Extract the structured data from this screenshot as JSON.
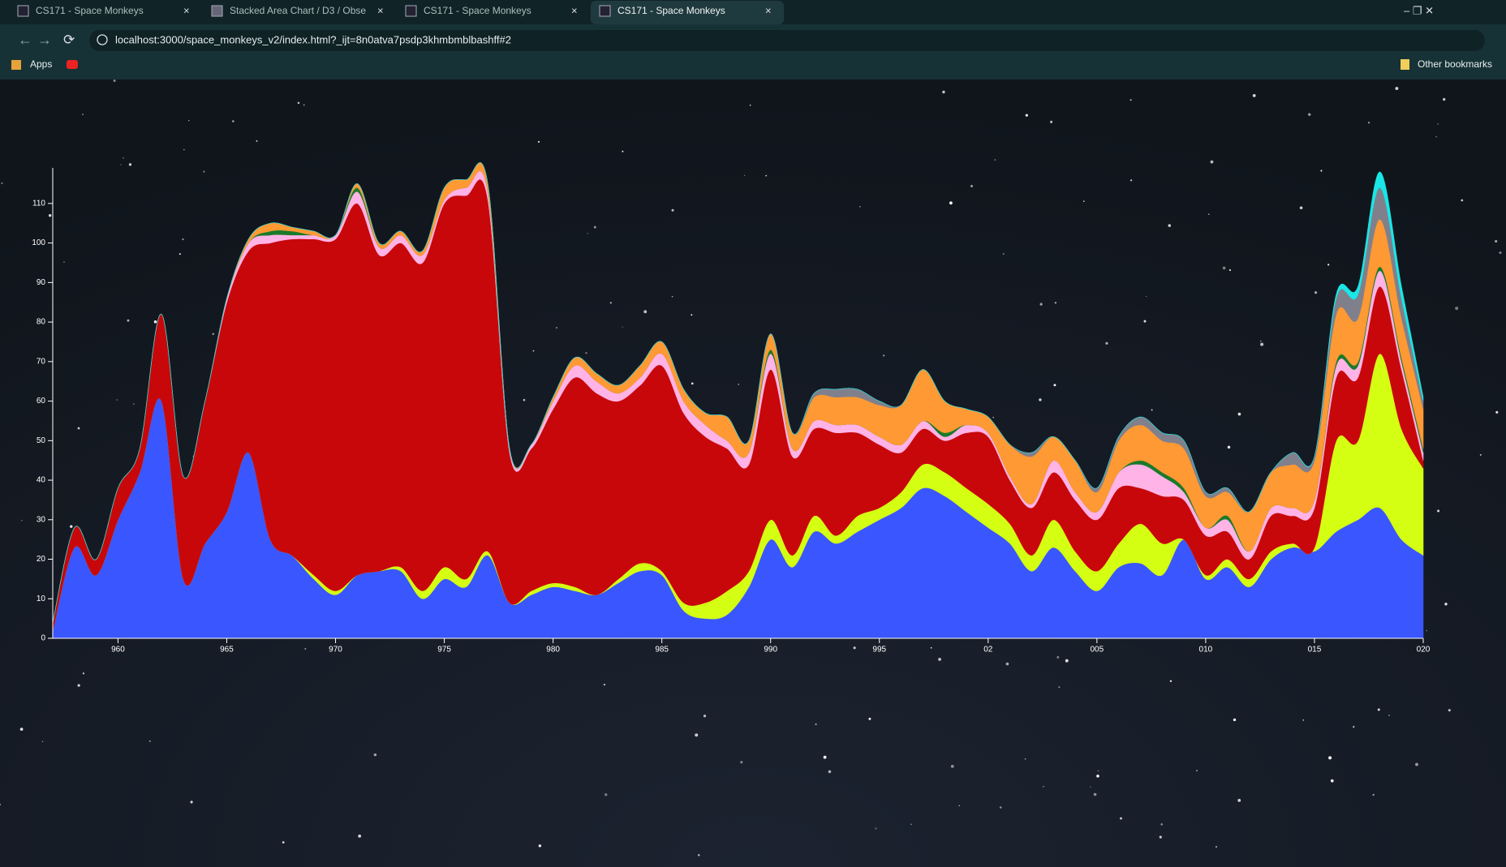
{
  "browser": {
    "tabs": [
      "CS171 - Space Monkeys",
      "Stacked Area Chart / D3 / Obse",
      "CS171 - Space Monkeys",
      "CS171 - Space Monkeys"
    ],
    "url": "localhost:3000/space_monkeys_v2/index.html?_ijt=8n0atva7psdp3khmbmblbashff#2",
    "bookmarks": [
      "Apps",
      "Other bookmarks"
    ]
  },
  "chart_data": {
    "type": "area",
    "stacked": true,
    "x": [
      1957,
      1958,
      1959,
      1960,
      1961,
      1962,
      1963,
      1964,
      1965,
      1966,
      1967,
      1968,
      1969,
      1970,
      1971,
      1972,
      1973,
      1974,
      1975,
      1976,
      1977,
      1978,
      1979,
      1980,
      1981,
      1982,
      1983,
      1984,
      1985,
      1986,
      1987,
      1988,
      1989,
      1990,
      1991,
      1992,
      1993,
      1994,
      1995,
      1996,
      1997,
      1998,
      1999,
      2000,
      2001,
      2002,
      2003,
      2004,
      2005,
      2006,
      2007,
      2008,
      2009,
      2010,
      2011,
      2012,
      2013,
      2014,
      2015,
      2016,
      2017,
      2018,
      2019,
      2020
    ],
    "series": [
      {
        "color": "#3a56ff",
        "values": [
          2,
          23,
          16,
          30,
          42,
          60,
          15,
          24,
          32,
          47,
          25,
          21,
          15,
          11,
          16,
          17,
          17,
          10,
          15,
          13,
          21,
          9,
          11,
          13,
          12,
          11,
          14,
          17,
          16,
          7,
          5,
          6,
          13,
          25,
          18,
          27,
          24,
          27,
          30,
          33,
          38,
          36,
          32,
          28,
          24,
          17,
          23,
          17,
          12,
          18,
          19,
          16,
          25,
          15,
          18,
          13,
          20,
          23,
          22,
          27,
          30,
          33,
          25,
          21
        ]
      },
      {
        "color": "#d4ff12",
        "values": [
          0,
          0,
          0,
          0,
          0,
          0,
          0,
          0,
          0,
          0,
          0,
          0,
          1,
          1,
          0,
          0,
          1,
          2,
          3,
          2,
          1,
          0,
          1,
          1,
          1,
          0,
          1,
          2,
          1,
          2,
          4,
          6,
          4,
          5,
          3,
          4,
          2,
          4,
          3,
          4,
          6,
          6,
          6,
          6,
          5,
          4,
          7,
          5,
          5,
          6,
          10,
          8,
          0,
          1,
          2,
          2,
          2,
          1,
          1,
          23,
          20,
          39,
          28,
          22
        ]
      },
      {
        "color": "#c8070b",
        "values": [
          2,
          5,
          4,
          8,
          6,
          22,
          26,
          36,
          53,
          51,
          75,
          80,
          85,
          89,
          94,
          80,
          82,
          83,
          92,
          97,
          89,
          38,
          36,
          44,
          53,
          51,
          45,
          45,
          52,
          48,
          42,
          36,
          27,
          38,
          25,
          22,
          26,
          21,
          16,
          10,
          9,
          8,
          14,
          17,
          11,
          12,
          12,
          13,
          13,
          14,
          9,
          12,
          10,
          10,
          7,
          5,
          9,
          7,
          10,
          16,
          16,
          17,
          15,
          2
        ]
      },
      {
        "color": "#ffb3e6",
        "values": [
          0,
          0,
          0,
          0,
          0,
          0,
          0,
          0,
          1,
          2,
          2,
          1,
          1,
          1,
          3,
          2,
          2,
          2,
          1,
          2,
          2,
          1,
          1,
          2,
          3,
          3,
          2,
          2,
          3,
          3,
          3,
          2,
          3,
          4,
          2,
          2,
          2,
          2,
          2,
          2,
          2,
          1,
          2,
          1,
          1,
          1,
          3,
          2,
          2,
          4,
          6,
          5,
          2,
          2,
          3,
          2,
          2,
          2,
          2,
          3,
          3,
          4,
          2,
          2
        ]
      },
      {
        "color": "#1a7a2a",
        "values": [
          0,
          0,
          0,
          0,
          0,
          0,
          0,
          0,
          0,
          0,
          1,
          1,
          0,
          0,
          1,
          0,
          0,
          0,
          0,
          0,
          0,
          0,
          0,
          0,
          0,
          0,
          0,
          0,
          0,
          0,
          0,
          0,
          0,
          1,
          0,
          0,
          0,
          0,
          0,
          0,
          0,
          1,
          0,
          0,
          0,
          0,
          0,
          0,
          0,
          0,
          1,
          1,
          1,
          0,
          1,
          0,
          0,
          0,
          0,
          1,
          1,
          1,
          1,
          1
        ]
      },
      {
        "color": "#ff9933",
        "values": [
          0,
          0,
          0,
          0,
          0,
          0,
          0,
          0,
          0,
          1,
          2,
          1,
          1,
          0,
          1,
          1,
          1,
          1,
          3,
          2,
          2,
          0,
          0,
          1,
          2,
          2,
          2,
          3,
          3,
          3,
          3,
          6,
          3,
          4,
          4,
          6,
          7,
          7,
          8,
          10,
          13,
          8,
          4,
          4,
          8,
          12,
          6,
          8,
          5,
          8,
          9,
          8,
          10,
          8,
          6,
          10,
          9,
          11,
          10,
          12,
          11,
          12,
          10,
          10
        ]
      },
      {
        "color": "#80808c",
        "values": [
          0,
          0,
          0,
          0,
          0,
          0,
          0,
          0,
          0,
          0,
          0,
          0,
          0,
          0,
          0,
          0,
          0,
          0,
          0,
          0,
          0,
          0,
          0,
          0,
          0,
          0,
          0,
          0,
          0,
          0,
          0,
          0,
          0,
          0,
          0,
          1,
          2,
          2,
          1,
          0,
          0,
          0,
          0,
          0,
          0,
          1,
          0,
          0,
          1,
          1,
          2,
          2,
          2,
          1,
          1,
          0,
          0,
          3,
          1,
          4,
          6,
          8,
          5,
          2
        ]
      },
      {
        "color": "#19e6e6",
        "values": [
          0,
          0,
          0,
          0,
          0,
          0,
          0,
          0,
          0,
          0,
          0,
          0,
          0,
          0,
          0,
          0,
          0,
          0,
          0,
          0,
          0,
          0,
          0,
          0,
          0,
          0,
          0,
          0,
          0,
          0,
          0,
          0,
          0,
          0,
          0,
          0,
          0,
          0,
          0,
          0,
          0,
          0,
          0,
          0,
          0,
          0,
          0,
          0,
          0,
          0,
          0,
          0,
          0,
          0,
          0,
          0,
          0,
          0,
          0,
          1,
          2,
          4,
          3,
          1
        ]
      }
    ],
    "xlim": [
      1957,
      2020
    ],
    "xticks": [
      {
        "value": 1960,
        "label": "960"
      },
      {
        "value": 1965,
        "label": "965"
      },
      {
        "value": 1970,
        "label": "970"
      },
      {
        "value": 1975,
        "label": "975"
      },
      {
        "value": 1980,
        "label": "980"
      },
      {
        "value": 1985,
        "label": "985"
      },
      {
        "value": 1990,
        "label": "990"
      },
      {
        "value": 1995,
        "label": "995"
      },
      {
        "value": 2000,
        "label": "02"
      },
      {
        "value": 2005,
        "label": "005"
      },
      {
        "value": 2010,
        "label": "010"
      },
      {
        "value": 2015,
        "label": "015"
      },
      {
        "value": 2020,
        "label": "020"
      }
    ],
    "ylim": [
      0,
      119
    ],
    "yticks": [
      0,
      10,
      20,
      30,
      40,
      50,
      60,
      70,
      80,
      90,
      100,
      110
    ]
  }
}
